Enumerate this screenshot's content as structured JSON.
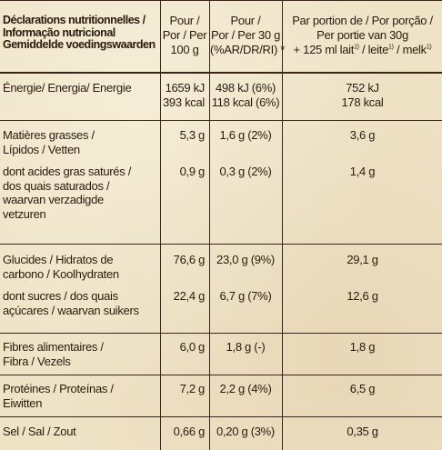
{
  "header": {
    "col1": [
      "Déclarations nutritionnelles /",
      "Informação nutricional",
      "Gemiddelde voedingswaarden"
    ],
    "col2": [
      "Pour /",
      "Por / Per",
      "100 g"
    ],
    "col3": [
      "Pour /",
      "Por / Per 30 g",
      "(%AR/DR/RI) *"
    ],
    "col4": [
      "Par portion de / Por porção /",
      "Per portie van 30g",
      "+ 125 ml lait",
      "1)",
      " / leite",
      "1)",
      " / melk",
      "1)"
    ]
  },
  "rows": [
    {
      "label": [
        "Énergie/ Energia/ Energie"
      ],
      "per100": [
        "1659 kJ",
        "393 kcal"
      ],
      "per30": [
        "498 kJ (6%)",
        "118 kcal (6%)"
      ],
      "portion": [
        "752 kJ",
        "178 kcal"
      ]
    },
    {
      "label": [
        "Matières grasses /",
        "Lípidos / Vetten"
      ],
      "per100": [
        "5,3 g"
      ],
      "per30": [
        "1,6 g (2%)"
      ],
      "portion": [
        "3,6 g"
      ]
    },
    {
      "label": [
        "dont acides gras saturés /",
        "dos quais saturados /",
        "waarvan verzadigde",
        "vetzuren"
      ],
      "per100": [
        "0,9 g"
      ],
      "per30": [
        "0,3 g (2%)"
      ],
      "portion": [
        "1,4 g"
      ]
    },
    {
      "label": [
        "Glucides / Hidratos de",
        "carbono / Koolhydraten"
      ],
      "per100": [
        "76,6 g"
      ],
      "per30": [
        "23,0 g (9%)"
      ],
      "portion": [
        "29,1 g"
      ]
    },
    {
      "label": [
        "dont sucres / dos quais",
        "açúcares / waarvan suikers"
      ],
      "per100": [
        "22,4 g"
      ],
      "per30": [
        "6,7 g (7%)"
      ],
      "portion": [
        "12,6 g"
      ]
    },
    {
      "label": [
        "Fibres alimentaires /",
        "Fibra / Vezels"
      ],
      "per100": [
        "6,0 g"
      ],
      "per30": [
        "1,8 g (-)"
      ],
      "portion": [
        "1,8 g"
      ]
    },
    {
      "label": [
        "Protéines / Proteínas /",
        "Eiwitten"
      ],
      "per100": [
        "7,2 g"
      ],
      "per30": [
        "2,2 g (4%)"
      ],
      "portion": [
        "6,5 g"
      ]
    },
    {
      "label": [
        "Sel / Sal / Zout"
      ],
      "per100": [
        "0,66 g"
      ],
      "per30": [
        "0,20 g (3%)"
      ],
      "portion": [
        "0,35 g"
      ]
    }
  ]
}
